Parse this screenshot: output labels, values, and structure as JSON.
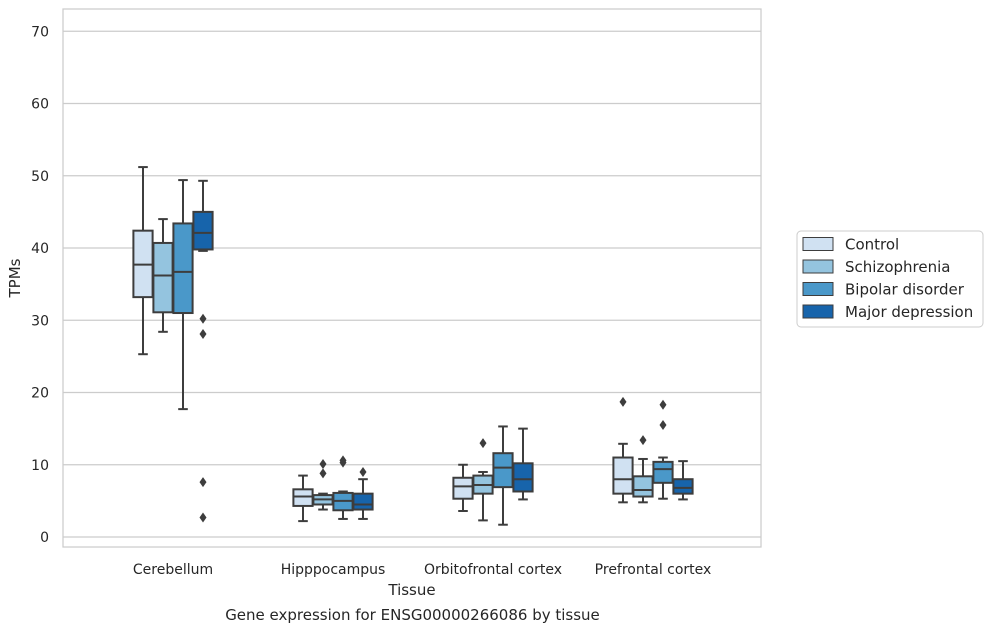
{
  "caption": "Gene expression for ENSG00000266086 by tissue",
  "chart_data": {
    "type": "box",
    "xlabel": "Tissue",
    "ylabel": "TPMs",
    "ylim": [
      -1.5,
      73
    ],
    "yticks": [
      0,
      10,
      20,
      30,
      40,
      50,
      60,
      70
    ],
    "grid": "horizontal",
    "legend_position": "right",
    "categories": [
      "Cerebellum",
      "Hipppocampus",
      "Orbitofrontal cortex",
      "Prefrontal cortex"
    ],
    "series": [
      {
        "name": "Control",
        "color": "#d0e1f2",
        "boxes": [
          {
            "whislo": 25.3,
            "q1": 33.2,
            "med": 37.7,
            "q3": 42.4,
            "whishi": 51.2,
            "fliers": []
          },
          {
            "whislo": 2.2,
            "q1": 4.3,
            "med": 5.6,
            "q3": 6.6,
            "whishi": 8.5,
            "fliers": []
          },
          {
            "whislo": 3.6,
            "q1": 5.3,
            "med": 7.0,
            "q3": 8.2,
            "whishi": 10.0,
            "fliers": []
          },
          {
            "whislo": 4.8,
            "q1": 6.0,
            "med": 8.0,
            "q3": 11.0,
            "whishi": 12.9,
            "fliers": [
              18.7
            ]
          }
        ]
      },
      {
        "name": "Schizophrenia",
        "color": "#94c4df",
        "boxes": [
          {
            "whislo": 28.4,
            "q1": 31.1,
            "med": 36.2,
            "q3": 40.7,
            "whishi": 44.0,
            "fliers": []
          },
          {
            "whislo": 3.8,
            "q1": 4.5,
            "med": 5.2,
            "q3": 5.8,
            "whishi": 6.0,
            "fliers": [
              8.8,
              10.1
            ]
          },
          {
            "whislo": 2.3,
            "q1": 6.0,
            "med": 7.2,
            "q3": 8.5,
            "whishi": 9.0,
            "fliers": [
              13.0
            ]
          },
          {
            "whislo": 4.8,
            "q1": 5.6,
            "med": 6.5,
            "q3": 8.4,
            "whishi": 10.8,
            "fliers": [
              13.4
            ]
          }
        ]
      },
      {
        "name": "Bipolar disorder",
        "color": "#4a98c9",
        "boxes": [
          {
            "whislo": 17.7,
            "q1": 31.0,
            "med": 36.7,
            "q3": 43.4,
            "whishi": 49.4,
            "fliers": []
          },
          {
            "whislo": 2.5,
            "q1": 3.7,
            "med": 5.0,
            "q3": 6.1,
            "whishi": 6.3,
            "fliers": [
              10.3,
              10.6
            ]
          },
          {
            "whislo": 1.7,
            "q1": 6.9,
            "med": 9.6,
            "q3": 11.6,
            "whishi": 15.3,
            "fliers": []
          },
          {
            "whislo": 5.3,
            "q1": 7.5,
            "med": 9.4,
            "q3": 10.4,
            "whishi": 11.0,
            "fliers": [
              15.5,
              18.3
            ]
          }
        ]
      },
      {
        "name": "Major depression",
        "color": "#1764ab",
        "boxes": [
          {
            "whislo": 39.6,
            "q1": 39.8,
            "med": 42.1,
            "q3": 45.0,
            "whishi": 49.3,
            "fliers": [
              30.2,
              28.1,
              7.6,
              2.7
            ]
          },
          {
            "whislo": 2.5,
            "q1": 3.8,
            "med": 4.5,
            "q3": 6.0,
            "whishi": 8.0,
            "fliers": [
              9.0
            ]
          },
          {
            "whislo": 5.2,
            "q1": 6.3,
            "med": 8.0,
            "q3": 10.2,
            "whishi": 15.0,
            "fliers": []
          },
          {
            "whislo": 5.2,
            "q1": 6.0,
            "med": 6.8,
            "q3": 8.0,
            "whishi": 10.5,
            "fliers": []
          }
        ]
      }
    ]
  }
}
